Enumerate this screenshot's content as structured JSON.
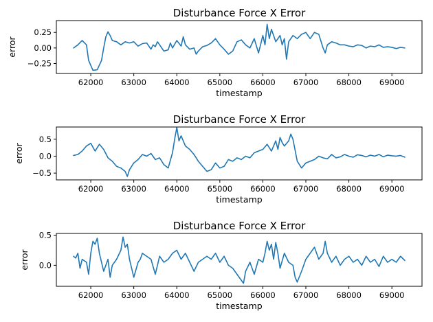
{
  "chart_data": [
    {
      "type": "line",
      "title": "Disturbance Force X Error",
      "xlabel": "timestamp",
      "ylabel": "error",
      "xlim": [
        61200,
        69700
      ],
      "ylim": [
        -0.41,
        0.44
      ],
      "xticks": [
        62000,
        63000,
        64000,
        65000,
        66000,
        67000,
        68000,
        69000
      ],
      "yticks": [
        -0.25,
        0.0,
        0.25
      ],
      "ytick_labels": [
        "−0.25",
        "0.00",
        "0.25"
      ],
      "grid": false,
      "color": "#1f77b4",
      "series": [
        {
          "x": [
            61600,
            61700,
            61800,
            61900,
            61950,
            62050,
            62150,
            62250,
            62300,
            62350,
            62400,
            62450,
            62500,
            62600,
            62700,
            62800,
            62900,
            63000,
            63100,
            63200,
            63300,
            63400,
            63450,
            63500,
            63550,
            63600,
            63700,
            63800,
            63850,
            63900,
            64000,
            64100,
            64150,
            64200,
            64300,
            64400,
            64450,
            64500,
            64600,
            64700,
            64800,
            64900,
            65000,
            65100,
            65200,
            65300,
            65400,
            65500,
            65600,
            65700,
            65800,
            65900,
            66000,
            66050,
            66100,
            66150,
            66200,
            66300,
            66400,
            66450,
            66500,
            66550,
            66600,
            66700,
            66800,
            66900,
            67000,
            67100,
            67200,
            67300,
            67400,
            67450,
            67500,
            67600,
            67700,
            67800,
            67900,
            68000,
            68100,
            68200,
            68300,
            68400,
            68500,
            68600,
            68700,
            68800,
            68900,
            69000,
            69100,
            69200,
            69300
          ],
          "y": [
            0.0,
            0.05,
            0.12,
            0.05,
            -0.2,
            -0.36,
            -0.35,
            -0.2,
            0.0,
            0.18,
            0.26,
            0.2,
            0.12,
            0.1,
            0.05,
            0.1,
            0.08,
            0.1,
            0.03,
            0.07,
            0.08,
            -0.02,
            0.05,
            0.02,
            0.1,
            0.05,
            -0.05,
            -0.03,
            0.08,
            0.0,
            0.12,
            0.03,
            0.18,
            0.05,
            -0.02,
            0.0,
            -0.1,
            -0.05,
            0.02,
            0.04,
            0.08,
            0.15,
            0.05,
            -0.02,
            -0.1,
            -0.05,
            0.1,
            0.13,
            0.05,
            0.0,
            0.15,
            -0.08,
            0.2,
            0.05,
            0.38,
            0.15,
            0.3,
            0.1,
            0.2,
            0.05,
            0.15,
            -0.18,
            0.1,
            0.2,
            0.15,
            0.22,
            0.25,
            0.15,
            0.25,
            0.22,
            0.0,
            -0.08,
            0.05,
            0.1,
            0.08,
            0.05,
            0.05,
            0.03,
            0.02,
            0.05,
            0.04,
            0.0,
            0.03,
            0.02,
            0.05,
            0.01,
            0.02,
            0.01,
            -0.01,
            0.01,
            0.0
          ]
        }
      ]
    },
    {
      "type": "line",
      "title": "Disturbance Force X Error",
      "xlabel": "timestamp",
      "ylabel": "error",
      "xlim": [
        61200,
        69700
      ],
      "ylim": [
        -0.7,
        0.86
      ],
      "xticks": [
        62000,
        63000,
        64000,
        65000,
        66000,
        67000,
        68000,
        69000
      ],
      "yticks": [
        -0.5,
        0.0,
        0.5
      ],
      "ytick_labels": [
        "−0.5",
        "0.0",
        "0.5"
      ],
      "grid": false,
      "color": "#1f77b4",
      "series": [
        {
          "x": [
            61600,
            61700,
            61800,
            61900,
            62000,
            62100,
            62200,
            62300,
            62400,
            62500,
            62600,
            62700,
            62800,
            62850,
            62900,
            63000,
            63100,
            63200,
            63300,
            63400,
            63500,
            63600,
            63700,
            63800,
            63900,
            63950,
            64000,
            64050,
            64100,
            64200,
            64300,
            64400,
            64500,
            64600,
            64700,
            64800,
            64900,
            65000,
            65100,
            65200,
            65300,
            65400,
            65500,
            65600,
            65700,
            65800,
            65900,
            66000,
            66100,
            66200,
            66300,
            66350,
            66400,
            66450,
            66500,
            66600,
            66650,
            66700,
            66800,
            66900,
            67000,
            67100,
            67200,
            67300,
            67400,
            67500,
            67600,
            67700,
            67800,
            67900,
            68000,
            68100,
            68200,
            68300,
            68400,
            68500,
            68600,
            68700,
            68800,
            68900,
            69000,
            69100,
            69200,
            69300
          ],
          "y": [
            0.02,
            0.05,
            0.15,
            0.3,
            0.38,
            0.15,
            0.35,
            0.2,
            -0.05,
            -0.15,
            -0.3,
            -0.35,
            -0.45,
            -0.6,
            -0.4,
            -0.2,
            -0.1,
            0.05,
            0.0,
            0.08,
            -0.1,
            -0.05,
            -0.25,
            -0.35,
            0.1,
            0.5,
            0.85,
            0.45,
            0.6,
            0.3,
            0.2,
            0.05,
            -0.15,
            -0.3,
            -0.45,
            -0.4,
            -0.2,
            -0.35,
            -0.3,
            -0.1,
            -0.15,
            -0.05,
            -0.1,
            0.0,
            -0.05,
            0.1,
            0.15,
            0.2,
            0.35,
            0.15,
            0.45,
            0.2,
            0.55,
            0.4,
            0.3,
            0.45,
            0.65,
            0.5,
            -0.15,
            -0.35,
            -0.2,
            -0.15,
            -0.1,
            0.0,
            -0.05,
            -0.08,
            0.05,
            -0.05,
            -0.02,
            0.05,
            0.0,
            -0.03,
            0.04,
            0.02,
            -0.02,
            0.03,
            0.0,
            0.05,
            -0.02,
            0.03,
            0.01,
            0.0,
            0.02,
            -0.03
          ]
        }
      ]
    },
    {
      "type": "line",
      "title": "Disturbance Force X Error",
      "xlabel": "timestamp",
      "ylabel": "error",
      "xlim": [
        61200,
        69700
      ],
      "ylim": [
        -0.35,
        0.53
      ],
      "xticks": [
        62000,
        63000,
        64000,
        65000,
        66000,
        67000,
        68000,
        69000
      ],
      "yticks": [
        0.0,
        0.5
      ],
      "ytick_labels": [
        "0.0",
        "0.5"
      ],
      "grid": false,
      "color": "#1f77b4",
      "series": [
        {
          "x": [
            61600,
            61650,
            61700,
            61750,
            61800,
            61900,
            61950,
            62000,
            62050,
            62100,
            62150,
            62200,
            62300,
            62400,
            62450,
            62500,
            62600,
            62700,
            62750,
            62800,
            62850,
            62900,
            62950,
            63000,
            63100,
            63150,
            63200,
            63300,
            63400,
            63500,
            63600,
            63700,
            63800,
            63900,
            64000,
            64100,
            64200,
            64300,
            64400,
            64500,
            64600,
            64700,
            64800,
            64900,
            65000,
            65100,
            65200,
            65300,
            65400,
            65500,
            65550,
            65600,
            65700,
            65800,
            65900,
            66000,
            66050,
            66100,
            66150,
            66200,
            66250,
            66300,
            66350,
            66400,
            66500,
            66600,
            66700,
            66750,
            66800,
            66900,
            67000,
            67100,
            67200,
            67300,
            67400,
            67450,
            67500,
            67600,
            67700,
            67800,
            67900,
            68000,
            68100,
            68200,
            68300,
            68400,
            68500,
            68600,
            68700,
            68800,
            68900,
            69000,
            69100,
            69200,
            69300
          ],
          "y": [
            0.15,
            0.12,
            0.2,
            -0.05,
            0.1,
            0.05,
            -0.15,
            0.2,
            0.4,
            0.35,
            0.45,
            0.2,
            -0.1,
            0.1,
            -0.2,
            0.0,
            0.1,
            0.25,
            0.47,
            0.3,
            0.35,
            0.1,
            -0.05,
            -0.2,
            0.05,
            0.1,
            0.2,
            0.15,
            0.1,
            -0.15,
            0.15,
            0.05,
            0.1,
            0.2,
            0.25,
            0.1,
            0.2,
            0.05,
            -0.1,
            0.05,
            0.1,
            0.15,
            0.1,
            0.2,
            0.05,
            0.15,
            0.0,
            -0.05,
            -0.15,
            -0.25,
            -0.3,
            -0.1,
            0.05,
            -0.15,
            0.1,
            0.05,
            0.2,
            0.4,
            0.25,
            0.35,
            0.1,
            0.38,
            0.2,
            -0.05,
            0.2,
            0.05,
            0.0,
            -0.2,
            -0.28,
            -0.1,
            0.1,
            0.2,
            0.3,
            0.1,
            0.2,
            0.4,
            0.2,
            0.05,
            0.15,
            0.0,
            0.1,
            0.15,
            0.05,
            0.1,
            0.0,
            0.15,
            0.05,
            0.1,
            -0.02,
            0.15,
            0.05,
            0.1,
            0.05,
            0.15,
            0.08
          ]
        }
      ]
    }
  ]
}
